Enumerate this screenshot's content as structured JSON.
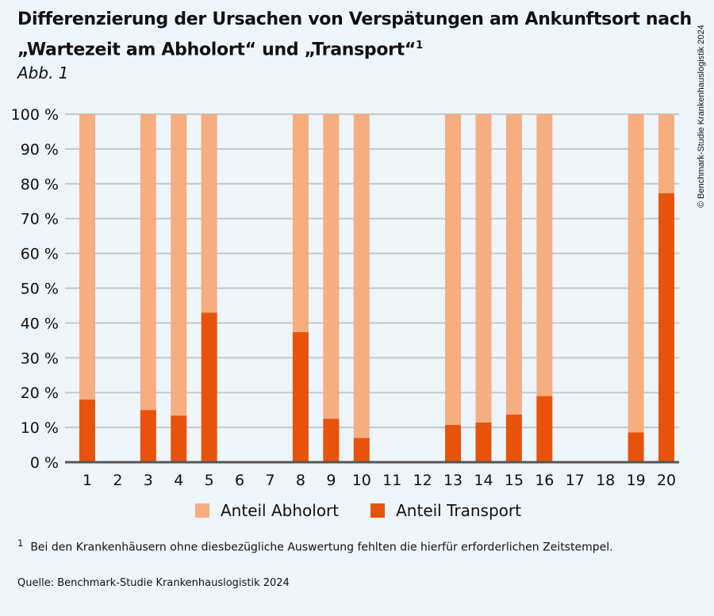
{
  "title": "Differenzierung der Ursachen von Verspätungen am Ankunftsort nach",
  "title_line2": "„Wartezeit am Abholort“ und „Transport“",
  "title_footnote_mark": "1",
  "subtitle": "Abb. 1",
  "copyright": "© Benchmark-Studie Krankenhauslogistik 2024",
  "footnote_mark": "1",
  "footnote": "Bei den Krankenhäusern ohne diesbezügliche Auswertung fehlten die hierfür erforderlichen Zeitstempel.",
  "source": "Quelle: Benchmark-Studie Krankenhauslogistik 2024",
  "chart_data": {
    "type": "bar",
    "stacked": true,
    "categories": [
      "1",
      "2",
      "3",
      "4",
      "5",
      "6",
      "7",
      "8",
      "9",
      "10",
      "11",
      "12",
      "13",
      "14",
      "15",
      "16",
      "17",
      "18",
      "19",
      "20"
    ],
    "series": [
      {
        "name": "Anteil Transport",
        "color": "#e8530c",
        "values": [
          18,
          null,
          15,
          13.4,
          43,
          null,
          null,
          37.4,
          12.5,
          7,
          null,
          null,
          10.7,
          11.4,
          13.7,
          19,
          null,
          null,
          8.6,
          77.3
        ]
      },
      {
        "name": "Anteil Abholort",
        "color": "#f6ad80",
        "values": [
          82,
          null,
          85,
          86.6,
          57,
          null,
          null,
          62.6,
          87.5,
          93,
          null,
          null,
          89.3,
          88.6,
          86.3,
          81,
          null,
          null,
          91.4,
          22.7
        ]
      }
    ],
    "yticks": [
      "0 %",
      "10 %",
      "20 %",
      "30 %",
      "40 %",
      "50 %",
      "60 %",
      "70 %",
      "80 %",
      "90 %",
      "100 %"
    ],
    "ylim": [
      0,
      100
    ],
    "grid": true,
    "legend_placement": "bottom"
  }
}
